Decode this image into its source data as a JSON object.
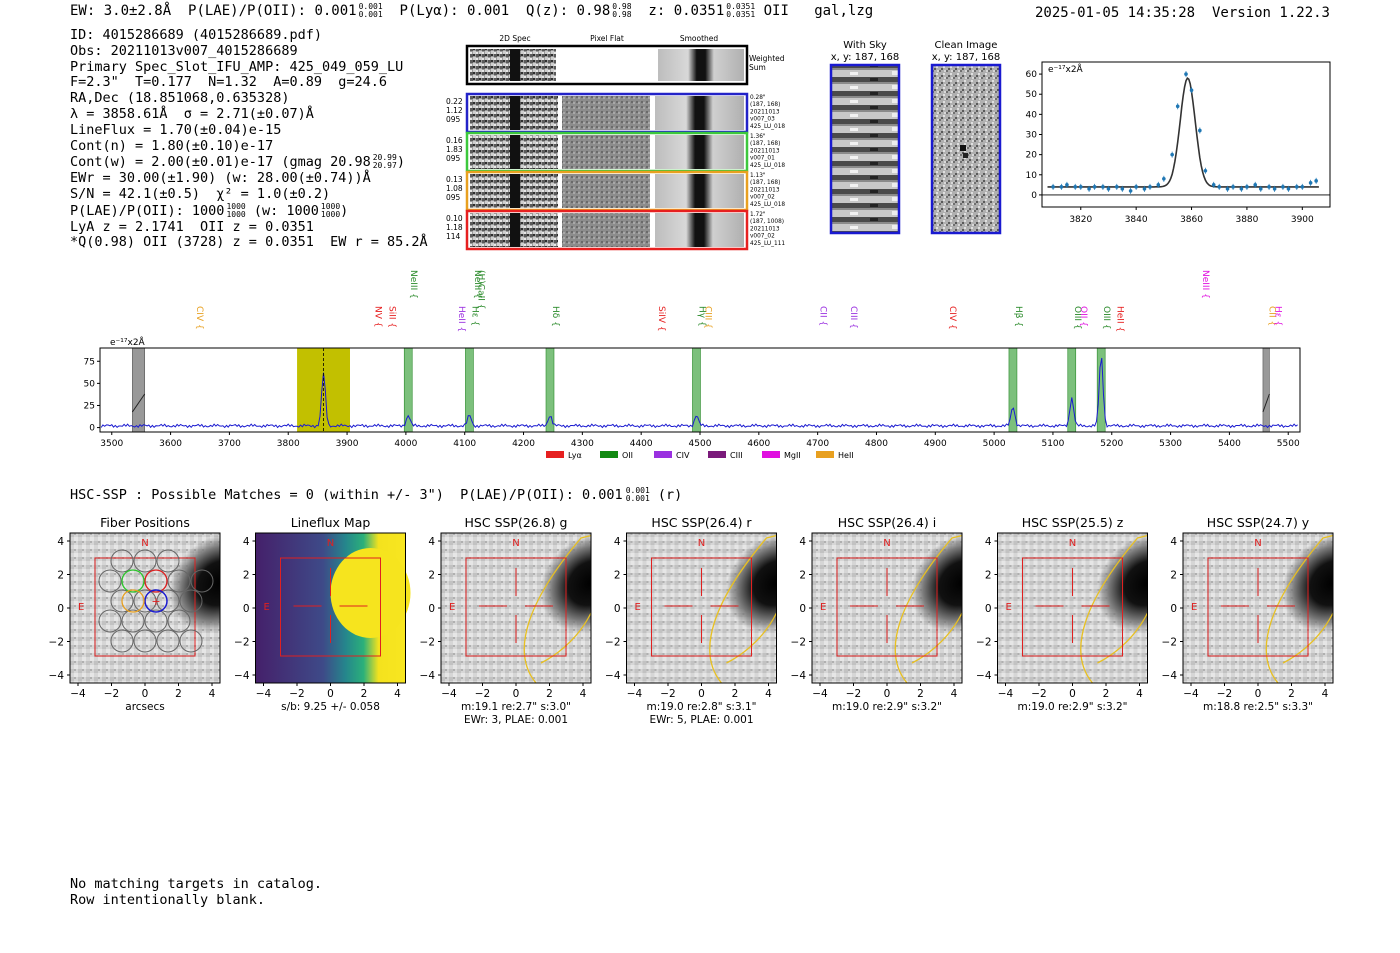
{
  "header": {
    "ew": "EW: 3.0±2.8Å",
    "plae": "P(LAE)/P(OII): 0.001",
    "plae_hi": "0.001",
    "plae_lo": "0.001",
    "plya": "P(Lyα): 0.001",
    "qz": "Q(z): 0.98",
    "qz_hi": "0.98",
    "qz_lo": "0.98",
    "z": "z: 0.0351",
    "z_hi": "0.0351",
    "z_lo": "0.0351",
    "line": "OII",
    "flags": "gal,lzg",
    "datetime": "2025-01-05 14:35:28",
    "version": "Version 1.22.3"
  },
  "info": {
    "id": "ID: 4015286689 (4015286689.pdf)",
    "obs": "Obs: 20211013v007_4015286689",
    "primary": "Primary Spec_Slot_IFU_AMP: 425_049_059_LU",
    "fit": "F=2.3\"  T=0.177  N=1.32  A=0.89  g=24.6",
    "radec": "RA,Dec (18.851068,0.635328)",
    "lambda": "λ = 3858.61Å  σ = 2.71(±0.07)Å",
    "lineflux": "LineFlux = 1.70(±0.04)e-15",
    "contn": "Cont(n) = 1.80(±0.10)e-17",
    "contw": "Cont(w) = 2.00(±0.01)e-17 (gmag 20.98",
    "contw_hi": "20.99",
    "contw_lo": "20.97",
    "ewr": "EWr = 30.00(±1.90) (w: 28.00(±0.74))Å",
    "sn": "S/N = 42.1(±0.5)  χ² = 1.0(±0.2)",
    "plae2": "P(LAE)/P(OII): 1000",
    "plae2_hi": "1000",
    "plae2_lo": "1000",
    "plae2_w": "(w: 1000",
    "plae2_w_hi": "1000",
    "plae2_w_lo": "1000",
    "lya": "LyA z = 2.1741  OII z = 0.0351",
    "q": "*Q(0.98) OII (3728) z = 0.0351  EW r = 85.2Å"
  },
  "spec2d": {
    "col_labels": [
      "2D Spec",
      "Pixel Flat",
      "Smoothed"
    ],
    "weighted": "Weighted Sum",
    "rows": [
      {
        "left": [
          "0.22",
          "1.12",
          "095"
        ],
        "right": [
          "0.28\"",
          "(187, 168)",
          "20211013",
          "v007_03",
          "425_LU_018"
        ],
        "color": "#2323c8"
      },
      {
        "left": [
          "0.16",
          "1.83",
          "095"
        ],
        "right": [
          "1.36\"",
          "(187, 168)",
          "20211013",
          "v007_01",
          "425_LU_018"
        ],
        "color": "#3cc83c"
      },
      {
        "left": [
          "0.13",
          "1.08",
          "095"
        ],
        "right": [
          "1.13\"",
          "(187, 168)",
          "20211013",
          "v007_02",
          "425_LU_018"
        ],
        "color": "#e8a020"
      },
      {
        "left": [
          "0.10",
          "1.18",
          "114"
        ],
        "right": [
          "1.72\"",
          "(187, 1008)",
          "20211013",
          "v007_02",
          "425_LU_111"
        ],
        "color": "#e62020"
      }
    ]
  },
  "cutouts": {
    "with_sky": "With Sky",
    "with_sky_xy": "x, y: 187, 168",
    "clean": "Clean Image",
    "clean_xy": "x, y: 187, 168"
  },
  "fit_plot": {
    "ylabel": "e⁻¹⁷x2Å",
    "xticks": [
      "3820",
      "3840",
      "3860",
      "3880",
      "3900"
    ],
    "yticks": [
      "0",
      "10",
      "20",
      "30",
      "40",
      "50",
      "60"
    ]
  },
  "spectrum": {
    "ylabel": "e⁻¹⁷x2Å",
    "xticks": [
      "3500",
      "3600",
      "3700",
      "3800",
      "3900",
      "4000",
      "4100",
      "4200",
      "4300",
      "4400",
      "4500",
      "4600",
      "4700",
      "4800",
      "4900",
      "5000",
      "5100",
      "5200",
      "5300",
      "5400",
      "5500"
    ],
    "yticks": [
      "0",
      "25",
      "50",
      "75"
    ],
    "lines": [
      {
        "name": "CIV",
        "color": "#e8a020",
        "x": 3640
      },
      {
        "name": "NV",
        "color": "#e62020",
        "x": 3943
      },
      {
        "name": "SiII",
        "color": "#e62020",
        "x": 3967
      },
      {
        "name": "NeIII",
        "color": "#2a8a2a",
        "x": 4004
      },
      {
        "name": "HeII",
        "color": "#9a30e0",
        "x": 4085
      },
      {
        "name": "Hε",
        "color": "#2a8a2a",
        "x": 4108
      },
      {
        "name": "(H)CaII",
        "color": "#2a8a2a",
        "x": 4108
      },
      {
        "name": "NeIII",
        "color": "#2a8a2a",
        "x": 4112
      },
      {
        "name": "Hδ",
        "color": "#2a8a2a",
        "x": 4245
      },
      {
        "name": "SiIV",
        "color": "#e62020",
        "x": 4425
      },
      {
        "name": "Hγ",
        "color": "#2a8a2a",
        "x": 4494
      },
      {
        "name": "CIII",
        "color": "#e8a020",
        "x": 4494
      },
      {
        "name": "CII",
        "color": "#9a30e0",
        "x": 4700
      },
      {
        "name": "CIII",
        "color": "#9a30e0",
        "x": 4752
      },
      {
        "name": "CIV",
        "color": "#e62020",
        "x": 4920
      },
      {
        "name": "Hβ",
        "color": "#2a8a2a",
        "x": 5032
      },
      {
        "name": "OIII",
        "color": "#2a8a2a",
        "x": 5132
      },
      {
        "name": "OII",
        "color": "#e010e0",
        "x": 5132
      },
      {
        "name": "OIII",
        "color": "#2a8a2a",
        "x": 5182
      },
      {
        "name": "HeII",
        "color": "#e62020",
        "x": 5205
      },
      {
        "name": "NeIII",
        "color": "#e010e0",
        "x": 5350
      },
      {
        "name": "CII",
        "color": "#e8a020",
        "x": 5463
      },
      {
        "name": "Hε",
        "color": "#e010e0",
        "x": 5463
      }
    ],
    "legend": [
      {
        "label": "Lyα",
        "color": "#e62020"
      },
      {
        "label": "OII",
        "color": "#128a12"
      },
      {
        "label": "CIV",
        "color": "#9a30e0"
      },
      {
        "label": "CIII",
        "color": "#7a1a7a"
      },
      {
        "label": "MgII",
        "color": "#e010e0"
      },
      {
        "label": "HeII",
        "color": "#e8a020"
      }
    ]
  },
  "chart_data": [
    {
      "type": "line",
      "title": "",
      "xlabel": "",
      "ylabel": "e^-17 x2Å",
      "xlim": [
        3480,
        5520
      ],
      "ylim": [
        -5,
        90
      ],
      "series": [
        {
          "name": "spectrum",
          "peaks": [
            {
              "x": 3860,
              "y": 60
            },
            {
              "x": 4004,
              "y": 12
            },
            {
              "x": 4108,
              "y": 12
            },
            {
              "x": 4245,
              "y": 12
            },
            {
              "x": 4494,
              "y": 12
            },
            {
              "x": 5032,
              "y": 22
            },
            {
              "x": 5132,
              "y": 32
            },
            {
              "x": 5182,
              "y": 80
            }
          ],
          "baseline": 2
        }
      ],
      "highlight_bands": [
        [
          3815,
          3905
        ]
      ],
      "line_bands": [
        4004,
        4108,
        4245,
        4494,
        5032,
        5132,
        5182
      ],
      "masked_bands": [
        3535,
        3556,
        5457,
        5468
      ]
    },
    {
      "type": "scatter",
      "title": "",
      "xlabel": "",
      "ylabel": "e^-17 x2Å",
      "xlim": [
        3806,
        3910
      ],
      "ylim": [
        -6,
        66
      ],
      "x": [
        3810,
        3813,
        3815,
        3818,
        3820,
        3823,
        3825,
        3828,
        3830,
        3833,
        3835,
        3838,
        3840,
        3843,
        3845,
        3848,
        3850,
        3853,
        3855,
        3858,
        3860,
        3863,
        3865,
        3868,
        3870,
        3873,
        3875,
        3878,
        3880,
        3883,
        3885,
        3888,
        3890,
        3893,
        3895,
        3898,
        3900,
        3903,
        3905
      ],
      "y": [
        4,
        4,
        5,
        4,
        4,
        3,
        4,
        4,
        3,
        4,
        3,
        2,
        4,
        3,
        4,
        5,
        8,
        20,
        44,
        60,
        52,
        32,
        12,
        5,
        4,
        3,
        4,
        3,
        4,
        5,
        3,
        4,
        3,
        4,
        3,
        4,
        4,
        6,
        7
      ],
      "fit": {
        "center": 3858.61,
        "sigma": 2.71,
        "peak": 54,
        "continuum": 4
      }
    }
  ],
  "hsc": {
    "matches": "HSC-SSP : Possible Matches = 0 (within +/- 3\")  P(LAE)/P(OII): 0.001",
    "matches_hi": "0.001",
    "matches_lo": "0.001",
    "matches_tail": "(r)",
    "panels": [
      {
        "title": "Fiber Positions",
        "line1": "arcsecs",
        "line2": ""
      },
      {
        "title": "Lineflux Map",
        "line1": "s/b: 9.25 +/- 0.058",
        "line2": ""
      },
      {
        "title": "HSC SSP(26.8) g",
        "line1": "m:19.1  re:2.7\"  s:3.0\"",
        "line2": "EWr: 3, PLAE: 0.001"
      },
      {
        "title": "HSC SSP(26.4) r",
        "line1": "m:19.0  re:2.8\"  s:3.1\"",
        "line2": "EWr: 5, PLAE: 0.001"
      },
      {
        "title": "HSC SSP(26.4) i",
        "line1": "m:19.0  re:2.9\"  s:3.2\"",
        "line2": ""
      },
      {
        "title": "HSC SSP(25.5) z",
        "line1": "m:19.0  re:2.9\"  s:3.2\"",
        "line2": ""
      },
      {
        "title": "HSC SSP(24.7) y",
        "line1": "m:18.8  re:2.5\"  s:3.3\"",
        "line2": ""
      }
    ],
    "ticks": [
      "4",
      "2",
      "0",
      "−2",
      "−4"
    ],
    "xticks": [
      "−4",
      "−2",
      "0",
      "2",
      "4"
    ],
    "n_label": "N",
    "e_label": "E"
  },
  "footer": {
    "line1": "No matching targets in catalog.",
    "line2": "Row intentionally blank."
  }
}
